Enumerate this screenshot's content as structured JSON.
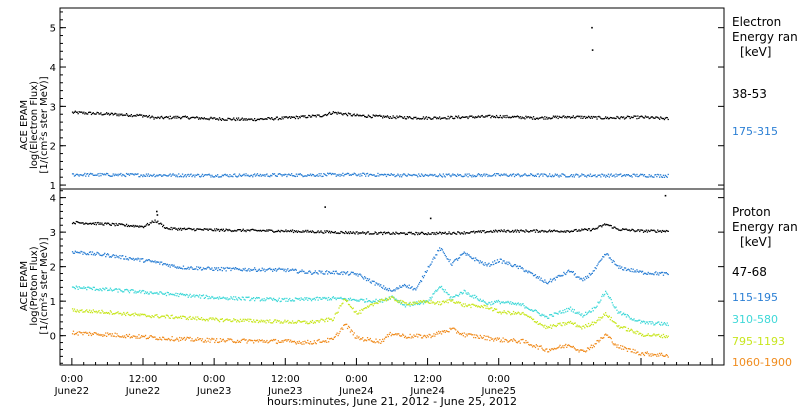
{
  "chart_data": [
    {
      "type": "scatter",
      "panel": "electron",
      "ylabel_lines": [
        "ACE EPAM",
        "log(Electron Flux)",
        "[1/(cm²s ster MeV)]"
      ],
      "ylim": [
        0.9,
        5.5
      ],
      "yticks": [
        1,
        2,
        3,
        4,
        5
      ],
      "legend_title_lines": [
        "Electron",
        "Energy ran",
        "[keV]"
      ],
      "series": [
        {
          "name": "38-53",
          "color": "#000000",
          "noise": 0.035,
          "t": [
            0,
            6,
            12,
            14,
            18,
            24,
            30,
            36,
            42,
            44,
            48,
            54,
            60,
            66,
            72,
            78,
            84,
            90,
            96,
            100.5
          ],
          "y": [
            2.86,
            2.82,
            2.78,
            2.72,
            2.74,
            2.7,
            2.68,
            2.72,
            2.78,
            2.86,
            2.78,
            2.74,
            2.72,
            2.74,
            2.76,
            2.72,
            2.75,
            2.72,
            2.74,
            2.7
          ]
        },
        {
          "name": "175-315",
          "color": "#2b7fd4",
          "noise": 0.04,
          "t": [
            0,
            12,
            24,
            36,
            48,
            60,
            72,
            84,
            96,
            100.5
          ],
          "y": [
            1.28,
            1.27,
            1.26,
            1.27,
            1.28,
            1.26,
            1.27,
            1.26,
            1.26,
            1.25
          ]
        }
      ],
      "spikes": [
        {
          "t": 87.6,
          "y": 5.02
        },
        {
          "t": 87.7,
          "y": 4.45
        }
      ]
    },
    {
      "type": "scatter",
      "panel": "proton",
      "ylabel_lines": [
        "ACE EPAM",
        "log(Proton Flux)",
        "[1/(cm²s ster MeV)]"
      ],
      "ylim": [
        -0.85,
        4.25
      ],
      "yticks": [
        0,
        1,
        2,
        3,
        4
      ],
      "legend_title_lines": [
        "Proton",
        "Energy ran",
        "[keV]"
      ],
      "series": [
        {
          "name": "47-68",
          "color": "#000000",
          "noise": 0.035,
          "t": [
            0,
            6,
            12,
            14,
            16,
            24,
            36,
            48,
            54,
            60,
            66,
            72,
            78,
            84,
            88,
            90,
            92,
            96,
            100.5
          ],
          "y": [
            3.3,
            3.25,
            3.18,
            3.35,
            3.12,
            3.08,
            3.05,
            3.0,
            2.98,
            2.98,
            3.0,
            3.05,
            3.05,
            3.05,
            3.1,
            3.25,
            3.1,
            3.05,
            3.05
          ]
        },
        {
          "name": "115-195",
          "color": "#2b7fd4",
          "noise": 0.05,
          "t": [
            0,
            6,
            12,
            14,
            18,
            24,
            36,
            40,
            44,
            48,
            52,
            54,
            56,
            58,
            60,
            62,
            64,
            66,
            70,
            72,
            76,
            80,
            84,
            86,
            88,
            90,
            92,
            96,
            100.5
          ],
          "y": [
            2.45,
            2.35,
            2.2,
            2.15,
            2.0,
            1.95,
            1.92,
            1.85,
            1.85,
            1.8,
            1.45,
            1.3,
            1.5,
            1.35,
            2.0,
            2.55,
            2.1,
            2.4,
            2.05,
            2.2,
            1.95,
            1.55,
            1.9,
            1.6,
            1.9,
            2.4,
            2.0,
            1.85,
            1.8
          ]
        },
        {
          "name": "310-580",
          "color": "#3fd8d8",
          "noise": 0.05,
          "t": [
            0,
            6,
            12,
            18,
            24,
            36,
            44,
            48,
            52,
            54,
            56,
            60,
            62,
            64,
            66,
            70,
            72,
            76,
            80,
            84,
            86,
            88,
            90,
            92,
            96,
            100.5
          ],
          "y": [
            1.42,
            1.35,
            1.28,
            1.2,
            1.12,
            1.05,
            1.1,
            1.05,
            1.02,
            1.15,
            0.9,
            1.0,
            1.45,
            1.1,
            1.3,
            0.95,
            1.0,
            0.9,
            0.55,
            0.8,
            0.6,
            0.8,
            1.3,
            0.7,
            0.4,
            0.35
          ]
        },
        {
          "name": "795-1193",
          "color": "#c8e61e",
          "noise": 0.05,
          "t": [
            0,
            6,
            12,
            18,
            24,
            36,
            40,
            44,
            46,
            48,
            52,
            54,
            56,
            60,
            62,
            64,
            66,
            70,
            72,
            76,
            80,
            84,
            86,
            88,
            90,
            92,
            96,
            100.5
          ],
          "y": [
            0.75,
            0.7,
            0.6,
            0.55,
            0.48,
            0.42,
            0.4,
            0.5,
            1.1,
            0.65,
            1.05,
            1.1,
            0.95,
            1.0,
            0.95,
            1.05,
            0.9,
            0.85,
            0.7,
            0.65,
            0.25,
            0.4,
            0.25,
            0.4,
            0.65,
            0.3,
            0.05,
            0.0
          ]
        },
        {
          "name": "1060-1900",
          "color": "#f08c1e",
          "noise": 0.06,
          "t": [
            0,
            6,
            12,
            18,
            24,
            36,
            40,
            44,
            46,
            48,
            52,
            54,
            56,
            60,
            62,
            64,
            66,
            70,
            72,
            76,
            80,
            84,
            86,
            88,
            90,
            92,
            96,
            100.5
          ],
          "y": [
            0.1,
            0.05,
            -0.02,
            -0.08,
            -0.12,
            -0.15,
            -0.18,
            -0.1,
            0.35,
            -0.05,
            -0.15,
            0.1,
            0.0,
            0.0,
            0.1,
            0.2,
            0.05,
            -0.05,
            -0.1,
            -0.15,
            -0.4,
            -0.25,
            -0.45,
            -0.25,
            0.05,
            -0.3,
            -0.5,
            -0.55
          ]
        }
      ],
      "spikes": [
        {
          "t": 14.2,
          "y": 3.62
        },
        {
          "t": 14.3,
          "y": 3.52
        },
        {
          "t": 42.6,
          "y": 3.75
        },
        {
          "t": 60.4,
          "y": 3.42
        },
        {
          "t": 100.0,
          "y": 4.08
        }
      ]
    }
  ],
  "x_axis": {
    "range_hours": [
      -2,
      110
    ],
    "ticks": [
      {
        "t": 0,
        "time": "0:00",
        "date": "June22"
      },
      {
        "t": 12,
        "time": "12:00",
        "date": "June22"
      },
      {
        "t": 24,
        "time": "0:00",
        "date": "June23"
      },
      {
        "t": 36,
        "time": "12:00",
        "date": "June23"
      },
      {
        "t": 48,
        "time": "0:00",
        "date": "June24"
      },
      {
        "t": 60,
        "time": "12:00",
        "date": "June24"
      },
      {
        "t": 72,
        "time": "0:00",
        "date": "June25"
      }
    ],
    "label": "hours:minutes, June 21, 2012 - June 25, 2012"
  }
}
